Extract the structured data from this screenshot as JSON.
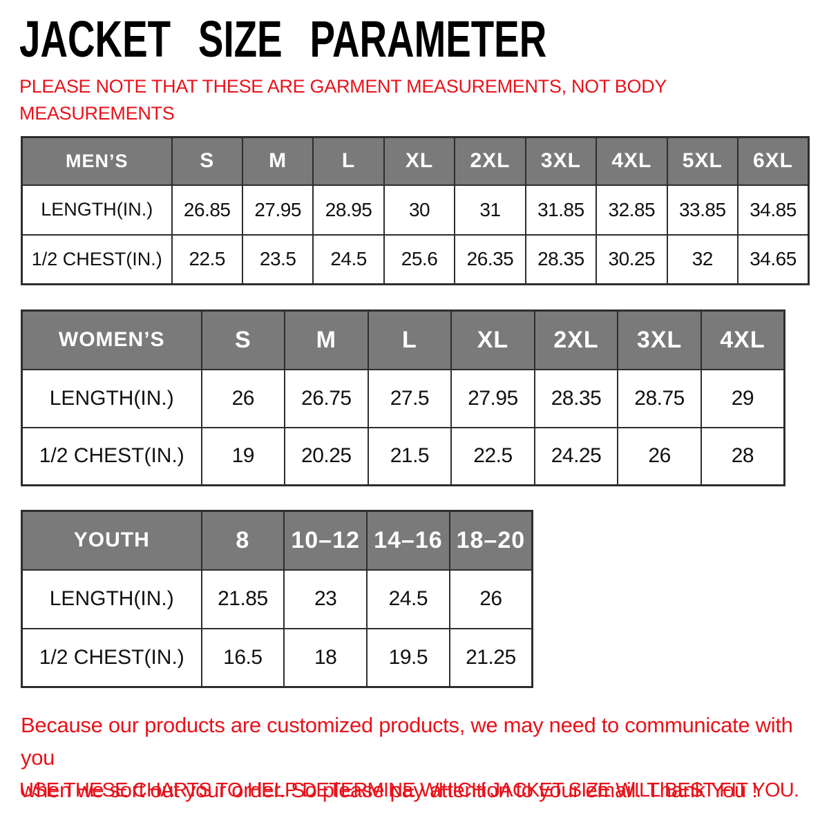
{
  "page": {
    "title": "JACKET SIZE PARAMETER",
    "note_lines": [
      "PLEASE NOTE THAT THESE ARE GARMENT MEASUREMENTS, NOT BODY",
      "MEASUREMENTS"
    ],
    "footer_lines": [
      "Because our products are customized products, we may need to communicate with you",
      "when we sort out your order. So please pay attention to your email. Thank You !"
    ],
    "footer_final": "USE THESE CHARTS TO HELP DETERMINE WHICH JACKET SIZE WILL BEST FIT YOU."
  },
  "colors": {
    "accent_red": "#e8121a",
    "header_gray": "#7a7a7a",
    "border_dark": "#2d2d2d"
  },
  "tables": [
    {
      "group_label": "MEN’S",
      "sizes": [
        "S",
        "M",
        "L",
        "XL",
        "2XL",
        "3XL",
        "4XL",
        "5XL",
        "6XL"
      ],
      "rows": [
        {
          "label": "LENGTH(IN.)",
          "values": [
            "26.85",
            "27.95",
            "28.95",
            "30",
            "31",
            "31.85",
            "32.85",
            "33.85",
            "34.85"
          ]
        },
        {
          "label": "1/2 CHEST(IN.)",
          "values": [
            "22.5",
            "23.5",
            "24.5",
            "25.6",
            "26.35",
            "28.35",
            "30.25",
            "32",
            "34.65"
          ]
        }
      ]
    },
    {
      "group_label": "WOMEN’S",
      "sizes": [
        "S",
        "M",
        "L",
        "XL",
        "2XL",
        "3XL",
        "4XL"
      ],
      "rows": [
        {
          "label": "LENGTH(IN.)",
          "values": [
            "26",
            "26.75",
            "27.5",
            "27.95",
            "28.35",
            "28.75",
            "29"
          ]
        },
        {
          "label": "1/2 CHEST(IN.)",
          "values": [
            "19",
            "20.25",
            "21.5",
            "22.5",
            "24.25",
            "26",
            "28"
          ]
        }
      ]
    },
    {
      "group_label": "YOUTH",
      "sizes": [
        "8",
        "10–12",
        "14–16",
        "18–20"
      ],
      "rows": [
        {
          "label": "LENGTH(IN.)",
          "values": [
            "21.85",
            "23",
            "24.5",
            "26"
          ]
        },
        {
          "label": "1/2 CHEST(IN.)",
          "values": [
            "16.5",
            "18",
            "19.5",
            "21.25"
          ]
        }
      ]
    }
  ]
}
